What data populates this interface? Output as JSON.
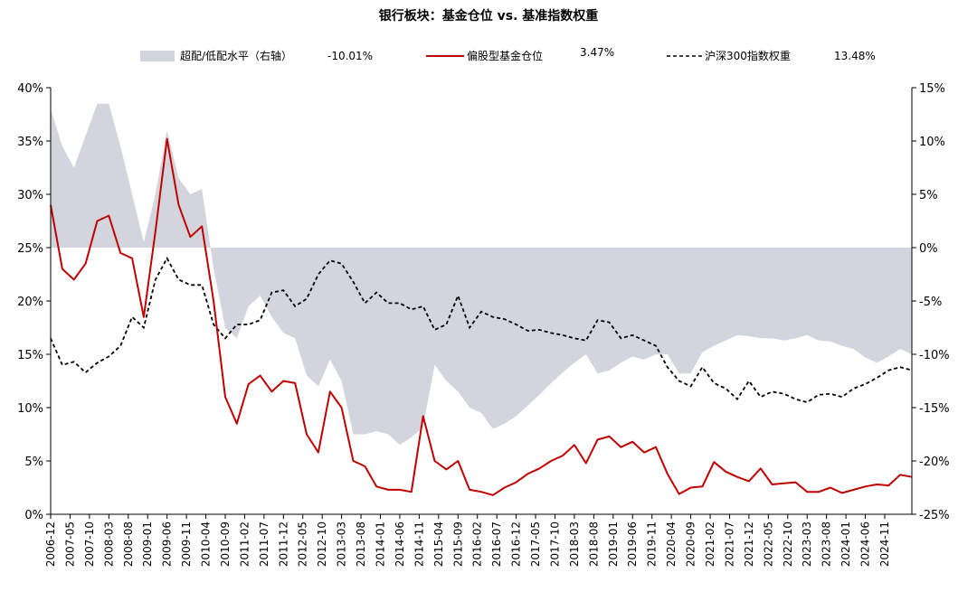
{
  "chart_data": {
    "type": "line",
    "title": "银行板块：基金仓位 vs. 基准指数权重",
    "legend": {
      "placement": "top",
      "items": [
        {
          "label": "超配/低配水平（右轴）",
          "value": "-10.01%",
          "marker": "area"
        },
        {
          "label": "偏股型基金仓位",
          "value": "3.47%",
          "marker": "line"
        },
        {
          "label": "沪深300指数权重",
          "value": "13.48%",
          "marker": "dashed-line"
        }
      ]
    },
    "x_tick_labels": [
      "2006-12",
      "2007-05",
      "2007-10",
      "2008-03",
      "2008-08",
      "2009-01",
      "2009-06",
      "2009-11",
      "2010-04",
      "2010-09",
      "2011-02",
      "2011-07",
      "2011-12",
      "2012-05",
      "2012-10",
      "2013-03",
      "2013-08",
      "2014-01",
      "2014-06",
      "2014-11",
      "2015-04",
      "2015-09",
      "2016-02",
      "2016-07",
      "2016-12",
      "2017-05",
      "2017-10",
      "2018-03",
      "2018-08",
      "2019-01",
      "2019-06",
      "2019-11",
      "2020-04",
      "2020-09",
      "2021-02",
      "2021-07",
      "2021-12",
      "2022-05",
      "2022-10",
      "2023-03",
      "2023-08",
      "2024-01",
      "2024-06",
      "2024-11"
    ],
    "x_range": [
      "2006-12",
      "2025-06"
    ],
    "left_axis": {
      "ylim": [
        0,
        40
      ],
      "tick_labels": [
        "0%",
        "5%",
        "10%",
        "15%",
        "20%",
        "25%",
        "30%",
        "35%",
        "40%"
      ]
    },
    "right_axis": {
      "ylim": [
        -25,
        15
      ],
      "tick_labels": [
        "-25%",
        "-20%",
        "-15%",
        "-10%",
        "-5%",
        "0%",
        "5%",
        "10%",
        "15%"
      ]
    },
    "grid": false,
    "colors": {
      "area": "#d3d5de",
      "fund": "#c00000",
      "index": "#000000"
    },
    "series": [
      {
        "name": "超配/低配水平（右轴）",
        "axis": "right",
        "style": "area",
        "x": [
          "2006-12",
          "2007-03",
          "2007-06",
          "2007-09",
          "2007-12",
          "2008-03",
          "2008-06",
          "2008-09",
          "2008-12",
          "2009-03",
          "2009-06",
          "2009-09",
          "2009-12",
          "2010-03",
          "2010-06",
          "2010-09",
          "2010-12",
          "2011-03",
          "2011-06",
          "2011-09",
          "2011-12",
          "2012-03",
          "2012-06",
          "2012-09",
          "2012-12",
          "2013-03",
          "2013-06",
          "2013-09",
          "2013-12",
          "2014-03",
          "2014-06",
          "2014-09",
          "2014-12",
          "2015-03",
          "2015-06",
          "2015-09",
          "2015-12",
          "2016-03",
          "2016-06",
          "2016-09",
          "2016-12",
          "2017-03",
          "2017-06",
          "2017-09",
          "2017-12",
          "2018-03",
          "2018-06",
          "2018-09",
          "2018-12",
          "2019-03",
          "2019-06",
          "2019-09",
          "2019-12",
          "2020-03",
          "2020-06",
          "2020-09",
          "2020-12",
          "2021-03",
          "2021-06",
          "2021-09",
          "2021-12",
          "2022-03",
          "2022-06",
          "2022-09",
          "2022-12",
          "2023-03",
          "2023-06",
          "2023-09",
          "2023-12",
          "2024-03",
          "2024-06",
          "2024-09",
          "2024-12",
          "2025-03",
          "2025-06"
        ],
        "values": [
          13.0,
          9.5,
          7.5,
          10.5,
          13.5,
          13.5,
          9.5,
          5.0,
          0.5,
          5.0,
          11.0,
          6.5,
          5.0,
          5.5,
          -2.0,
          -7.5,
          -8.5,
          -5.5,
          -4.5,
          -6.5,
          -8.0,
          -8.5,
          -12.0,
          -13.0,
          -10.5,
          -12.5,
          -17.5,
          -17.5,
          -17.2,
          -17.5,
          -18.5,
          -17.8,
          -16.8,
          -11.0,
          -12.5,
          -13.5,
          -15.0,
          -15.5,
          -17.0,
          -16.5,
          -15.8,
          -14.8,
          -13.8,
          -12.7,
          -11.7,
          -10.8,
          -10.0,
          -11.8,
          -11.5,
          -10.8,
          -10.2,
          -10.5,
          -10.0,
          -10.0,
          -11.8,
          -11.8,
          -9.8,
          -9.2,
          -8.7,
          -8.2,
          -8.3,
          -8.5,
          -8.5,
          -8.7,
          -8.5,
          -8.2,
          -8.7,
          -8.8,
          -9.2,
          -9.5,
          -10.3,
          -10.8,
          -10.2,
          -9.5,
          -10.0
        ]
      },
      {
        "name": "偏股型基金仓位",
        "axis": "left",
        "style": "solid",
        "x": [
          "2006-12",
          "2007-03",
          "2007-06",
          "2007-09",
          "2007-12",
          "2008-03",
          "2008-06",
          "2008-09",
          "2008-12",
          "2009-03",
          "2009-06",
          "2009-09",
          "2009-12",
          "2010-03",
          "2010-06",
          "2010-09",
          "2010-12",
          "2011-03",
          "2011-06",
          "2011-09",
          "2011-12",
          "2012-03",
          "2012-06",
          "2012-09",
          "2012-12",
          "2013-03",
          "2013-06",
          "2013-09",
          "2013-12",
          "2014-03",
          "2014-06",
          "2014-09",
          "2014-12",
          "2015-03",
          "2015-06",
          "2015-09",
          "2015-12",
          "2016-03",
          "2016-06",
          "2016-09",
          "2016-12",
          "2017-03",
          "2017-06",
          "2017-09",
          "2017-12",
          "2018-03",
          "2018-06",
          "2018-09",
          "2018-12",
          "2019-03",
          "2019-06",
          "2019-09",
          "2019-12",
          "2020-03",
          "2020-06",
          "2020-09",
          "2020-12",
          "2021-03",
          "2021-06",
          "2021-09",
          "2021-12",
          "2022-03",
          "2022-06",
          "2022-09",
          "2022-12",
          "2023-03",
          "2023-06",
          "2023-09",
          "2023-12",
          "2024-03",
          "2024-06",
          "2024-09",
          "2024-12",
          "2025-03",
          "2025-06"
        ],
        "values": [
          29.0,
          23.0,
          22.0,
          23.5,
          27.5,
          28.0,
          24.5,
          24.0,
          18.5,
          26.5,
          35.2,
          29.0,
          26.0,
          27.0,
          20.0,
          11.0,
          8.5,
          12.2,
          13.0,
          11.5,
          12.5,
          12.3,
          7.5,
          5.8,
          11.5,
          10.0,
          5.0,
          4.5,
          2.6,
          2.3,
          2.3,
          2.1,
          9.2,
          5.0,
          4.2,
          5.0,
          2.3,
          2.1,
          1.8,
          2.5,
          3.0,
          3.8,
          4.3,
          5.0,
          5.5,
          6.5,
          4.8,
          7.0,
          7.3,
          6.3,
          6.8,
          5.8,
          6.3,
          3.8,
          1.9,
          2.5,
          2.6,
          4.9,
          4.0,
          3.5,
          3.1,
          4.3,
          2.8,
          2.9,
          3.0,
          2.1,
          2.1,
          2.5,
          2.0,
          2.3,
          2.6,
          2.8,
          2.7,
          3.7,
          3.5
        ]
      },
      {
        "name": "沪深300指数权重",
        "axis": "left",
        "style": "dashed",
        "x": [
          "2006-12",
          "2007-03",
          "2007-06",
          "2007-09",
          "2007-12",
          "2008-03",
          "2008-06",
          "2008-09",
          "2008-12",
          "2009-03",
          "2009-06",
          "2009-09",
          "2009-12",
          "2010-03",
          "2010-06",
          "2010-09",
          "2010-12",
          "2011-03",
          "2011-06",
          "2011-09",
          "2011-12",
          "2012-03",
          "2012-06",
          "2012-09",
          "2012-12",
          "2013-03",
          "2013-06",
          "2013-09",
          "2013-12",
          "2014-03",
          "2014-06",
          "2014-09",
          "2014-12",
          "2015-03",
          "2015-06",
          "2015-09",
          "2015-12",
          "2016-03",
          "2016-06",
          "2016-09",
          "2016-12",
          "2017-03",
          "2017-06",
          "2017-09",
          "2017-12",
          "2018-03",
          "2018-06",
          "2018-09",
          "2018-12",
          "2019-03",
          "2019-06",
          "2019-09",
          "2019-12",
          "2020-03",
          "2020-06",
          "2020-09",
          "2020-12",
          "2021-03",
          "2021-06",
          "2021-09",
          "2021-12",
          "2022-03",
          "2022-06",
          "2022-09",
          "2022-12",
          "2023-03",
          "2023-06",
          "2023-09",
          "2023-12",
          "2024-03",
          "2024-06",
          "2024-09",
          "2024-12",
          "2025-03",
          "2025-06"
        ],
        "values": [
          16.5,
          14.0,
          14.3,
          13.3,
          14.2,
          14.8,
          15.8,
          18.5,
          17.5,
          22.0,
          24.0,
          22.0,
          21.5,
          21.5,
          17.8,
          16.5,
          17.8,
          17.8,
          18.2,
          20.8,
          21.0,
          19.5,
          20.2,
          22.5,
          23.8,
          23.5,
          21.8,
          19.8,
          20.8,
          19.8,
          19.8,
          19.2,
          19.5,
          17.3,
          17.8,
          20.5,
          17.5,
          19.0,
          18.5,
          18.3,
          17.8,
          17.2,
          17.3,
          17.0,
          16.8,
          16.5,
          16.3,
          18.2,
          18.0,
          16.5,
          16.8,
          16.3,
          15.8,
          13.8,
          12.5,
          12.0,
          13.8,
          12.3,
          11.8,
          10.8,
          12.5,
          11.0,
          11.5,
          11.3,
          10.8,
          10.5,
          11.2,
          11.3,
          11.0,
          11.8,
          12.2,
          12.8,
          13.5,
          13.8,
          13.5
        ]
      }
    ]
  }
}
